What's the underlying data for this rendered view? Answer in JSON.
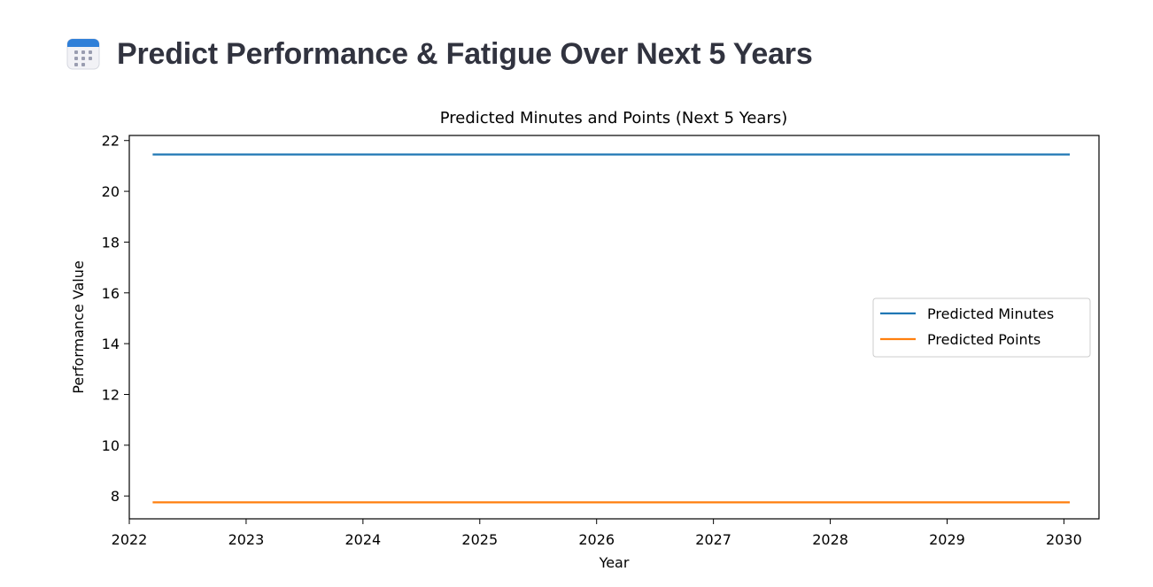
{
  "page": {
    "title": "Predict Performance & Fatigue Over Next 5 Years",
    "icon": "calendar-icon"
  },
  "chart_data": {
    "type": "line",
    "title": "Predicted Minutes and Points (Next 5 Years)",
    "xlabel": "Year",
    "ylabel": "Performance Value",
    "xlim": [
      2022.0,
      2030.3
    ],
    "ylim": [
      7.1,
      22.2
    ],
    "xticks": [
      2022,
      2023,
      2024,
      2025,
      2026,
      2027,
      2028,
      2029,
      2030
    ],
    "yticks": [
      8,
      10,
      12,
      14,
      16,
      18,
      20,
      22
    ],
    "grid": false,
    "legend_position": "center-right",
    "x": [
      2022.2,
      2030.05
    ],
    "series": [
      {
        "name": "Predicted Minutes",
        "color": "#1f77b4",
        "values": [
          21.45,
          21.45
        ]
      },
      {
        "name": "Predicted Points",
        "color": "#ff7f0e",
        "values": [
          7.75,
          7.75
        ]
      }
    ]
  }
}
